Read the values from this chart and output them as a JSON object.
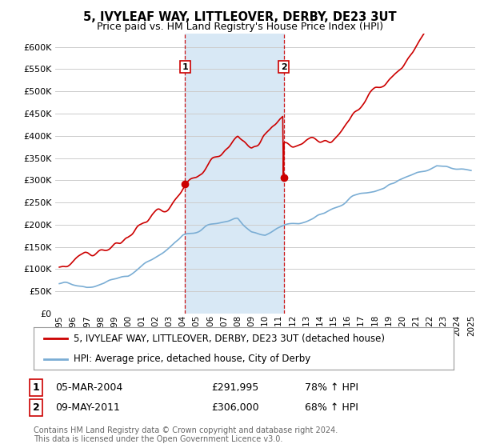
{
  "title": "5, IVYLEAF WAY, LITTLEOVER, DERBY, DE23 3UT",
  "subtitle": "Price paid vs. HM Land Registry's House Price Index (HPI)",
  "ylim": [
    0,
    630000
  ],
  "yticks": [
    0,
    50000,
    100000,
    150000,
    200000,
    250000,
    300000,
    350000,
    400000,
    450000,
    500000,
    550000,
    600000
  ],
  "red_line_color": "#cc0000",
  "blue_line_color": "#7aadd4",
  "background_color": "#ffffff",
  "plot_bg_color": "#ffffff",
  "shade_color": "#d8e8f5",
  "grid_color": "#cccccc",
  "annotation1": {
    "label": "1",
    "x_date": 2004.17,
    "y": 291995,
    "date_str": "05-MAR-2004",
    "price": "£291,995",
    "pct": "78% ↑ HPI"
  },
  "annotation2": {
    "label": "2",
    "x_date": 2011.35,
    "y": 306000,
    "date_str": "09-MAY-2011",
    "price": "£306,000",
    "pct": "68% ↑ HPI"
  },
  "legend_line1": "5, IVYLEAF WAY, LITTLEOVER, DERBY, DE23 3UT (detached house)",
  "legend_line2": "HPI: Average price, detached house, City of Derby",
  "footer1": "Contains HM Land Registry data © Crown copyright and database right 2024.",
  "footer2": "This data is licensed under the Open Government Licence v3.0.",
  "xmin": 1994.7,
  "xmax": 2025.3
}
